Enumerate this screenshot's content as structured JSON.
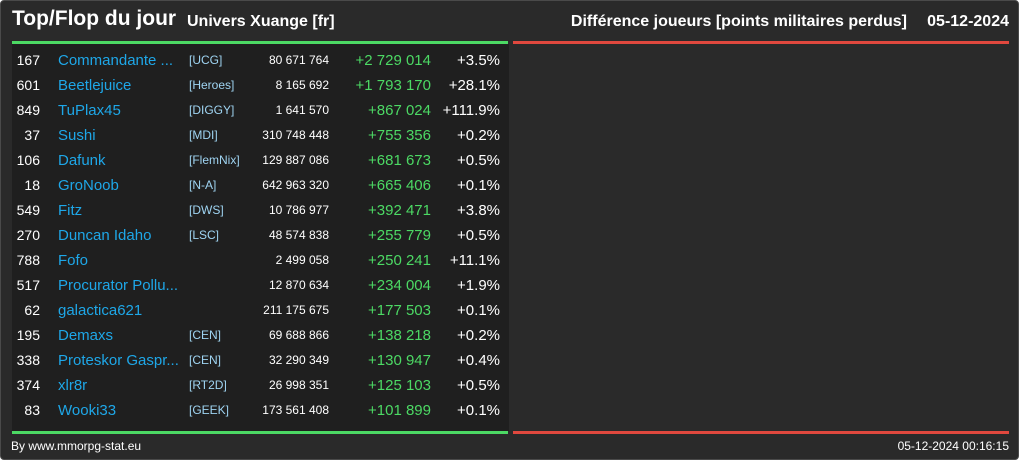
{
  "header": {
    "title": "Top/Flop du jour",
    "universe": "Univers Xuange [fr]",
    "metric": "Différence joueurs [points militaires perdus]",
    "date": "05-12-2024"
  },
  "colors": {
    "background": "#2a2a2a",
    "panel": "#1f1f1f",
    "top_bar": "#4cd964",
    "flop_bar": "#e0483e",
    "player_name": "#1ea7e8",
    "alliance": "#9fd4f2",
    "positive_diff": "#4cd964"
  },
  "top": [
    {
      "rank": "167",
      "name": "Commandante ...",
      "alliance": "[UCG]",
      "points": "80 671 764",
      "diff": "+2 729 014",
      "pct": "+3.5%"
    },
    {
      "rank": "601",
      "name": "Beetlejuice",
      "alliance": "[Heroes]",
      "points": "8 165 692",
      "diff": "+1 793 170",
      "pct": "+28.1%"
    },
    {
      "rank": "849",
      "name": "TuPlax45",
      "alliance": "[DIGGY]",
      "points": "1 641 570",
      "diff": "+867 024",
      "pct": "+111.9%"
    },
    {
      "rank": "37",
      "name": "Sushi",
      "alliance": "[MDI]",
      "points": "310 748 448",
      "diff": "+755 356",
      "pct": "+0.2%"
    },
    {
      "rank": "106",
      "name": "Dafunk",
      "alliance": "[FlemNix]",
      "points": "129 887 086",
      "diff": "+681 673",
      "pct": "+0.5%"
    },
    {
      "rank": "18",
      "name": "GroNoob",
      "alliance": "[N-A]",
      "points": "642 963 320",
      "diff": "+665 406",
      "pct": "+0.1%"
    },
    {
      "rank": "549",
      "name": "Fitz",
      "alliance": "[DWS]",
      "points": "10 786 977",
      "diff": "+392 471",
      "pct": "+3.8%"
    },
    {
      "rank": "270",
      "name": "Duncan Idaho",
      "alliance": "[LSC]",
      "points": "48 574 838",
      "diff": "+255 779",
      "pct": "+0.5%"
    },
    {
      "rank": "788",
      "name": "Fofo",
      "alliance": "",
      "points": "2 499 058",
      "diff": "+250 241",
      "pct": "+11.1%"
    },
    {
      "rank": "517",
      "name": "Procurator Pollu...",
      "alliance": "",
      "points": "12 870 634",
      "diff": "+234 004",
      "pct": "+1.9%"
    },
    {
      "rank": "62",
      "name": "galactica621",
      "alliance": "",
      "points": "211 175 675",
      "diff": "+177 503",
      "pct": "+0.1%"
    },
    {
      "rank": "195",
      "name": "Demaxs",
      "alliance": "[CEN]",
      "points": "69 688 866",
      "diff": "+138 218",
      "pct": "+0.2%"
    },
    {
      "rank": "338",
      "name": "Proteskor Gaspr...",
      "alliance": "[CEN]",
      "points": "32 290 349",
      "diff": "+130 947",
      "pct": "+0.4%"
    },
    {
      "rank": "374",
      "name": "xlr8r",
      "alliance": "[RT2D]",
      "points": "26 998 351",
      "diff": "+125 103",
      "pct": "+0.5%"
    },
    {
      "rank": "83",
      "name": "Wooki33",
      "alliance": "[GEEK]",
      "points": "173 561 408",
      "diff": "+101 899",
      "pct": "+0.1%"
    }
  ],
  "flop": [],
  "footer": {
    "credit": "By www.mmorpg-stat.eu",
    "timestamp": "05-12-2024 00:16:15"
  }
}
